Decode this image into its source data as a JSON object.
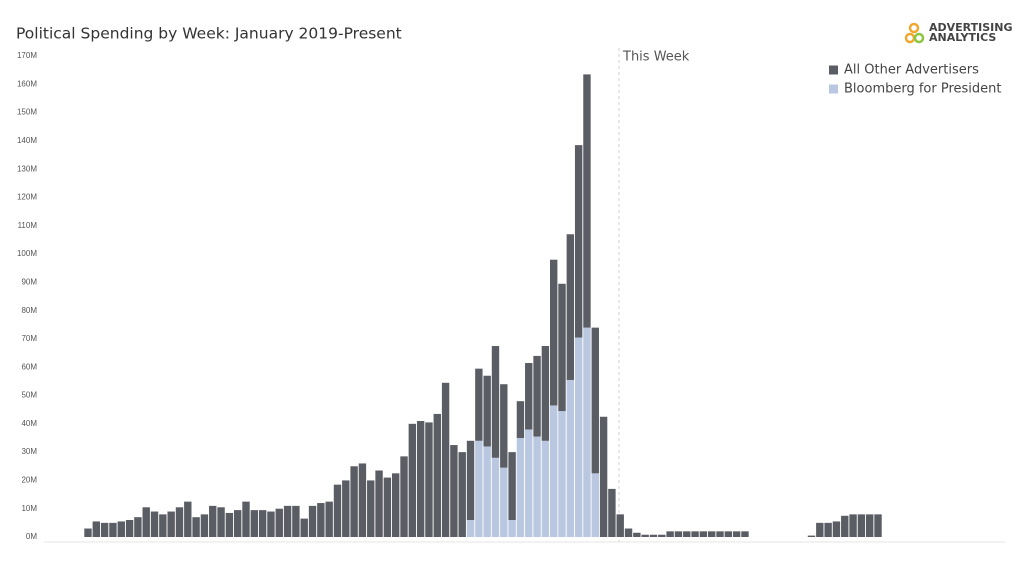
{
  "chart_data": {
    "type": "stacked_bar",
    "title": "Political Spending by Week: January 2019-Present",
    "logo": [
      "ADVERTISING",
      "ANALYTICS"
    ],
    "annotation": "This Week",
    "ylim": [
      0,
      170
    ],
    "yticks": [
      {
        "value": 0,
        "label": "0M"
      },
      {
        "value": 10,
        "label": "10M"
      },
      {
        "value": 20,
        "label": "20M"
      },
      {
        "value": 30,
        "label": "30M"
      },
      {
        "value": 40,
        "label": "40M"
      },
      {
        "value": 50,
        "label": "50M"
      },
      {
        "value": 60,
        "label": "60M"
      },
      {
        "value": 70,
        "label": "70M"
      },
      {
        "value": 80,
        "label": "80M"
      },
      {
        "value": 90,
        "label": "90M"
      },
      {
        "value": 100,
        "label": "100M"
      },
      {
        "value": 110,
        "label": "110M"
      },
      {
        "value": 120,
        "label": "120M"
      },
      {
        "value": 130,
        "label": "130M"
      },
      {
        "value": 140,
        "label": "140M"
      },
      {
        "value": 150,
        "label": "150M"
      },
      {
        "value": 160,
        "label": "160M"
      },
      {
        "value": 170,
        "label": "170M"
      }
    ],
    "grid": false,
    "series": [
      {
        "name": "All Other Advertisers",
        "color": "#5b5d64",
        "values": [
          3,
          5.5,
          5,
          5,
          5.5,
          6,
          7,
          10.5,
          9,
          8,
          9,
          10.5,
          12.5,
          7,
          8,
          11,
          10.5,
          8.5,
          9.5,
          12.5,
          9.5,
          9.5,
          9,
          10,
          11,
          11,
          6.5,
          11,
          12,
          12.5,
          18.5,
          20,
          25,
          26,
          20,
          23.5,
          21,
          22.5,
          28.5,
          40,
          41,
          40.5,
          43.5,
          54.5,
          32.5,
          30,
          28,
          25.5,
          25,
          39.5,
          29.5,
          24,
          13,
          23.5,
          28.5,
          33.5,
          51.5,
          45,
          51.5,
          68,
          89.5,
          51.5,
          42.5,
          17,
          8,
          3,
          1.5,
          0.8,
          0.8,
          0.8,
          2,
          2,
          2,
          2,
          2,
          2,
          2,
          2,
          2,
          2,
          0,
          0,
          0,
          0,
          0,
          0,
          0,
          0.5,
          5,
          5,
          5.5,
          7.5,
          8,
          8,
          8,
          8
        ]
      },
      {
        "name": "Bloomberg for President",
        "color": "#b9c7e1",
        "values": [
          0,
          0,
          0,
          0,
          0,
          0,
          0,
          0,
          0,
          0,
          0,
          0,
          0,
          0,
          0,
          0,
          0,
          0,
          0,
          0,
          0,
          0,
          0,
          0,
          0,
          0,
          0,
          0,
          0,
          0,
          0,
          0,
          0,
          0,
          0,
          0,
          0,
          0,
          0,
          0,
          0,
          0,
          0,
          0,
          0,
          0,
          6,
          34,
          32,
          28,
          24.5,
          6,
          35,
          38,
          35.5,
          34,
          46.5,
          44.5,
          55.5,
          70.5,
          74,
          22.5,
          0,
          0,
          0,
          0,
          0,
          0,
          0,
          0,
          0,
          0,
          0,
          0,
          0,
          0,
          0,
          0,
          0,
          0,
          0,
          0,
          0,
          0,
          0,
          0,
          0,
          0,
          0,
          0,
          0,
          0,
          0,
          0,
          0,
          0
        ]
      }
    ]
  }
}
